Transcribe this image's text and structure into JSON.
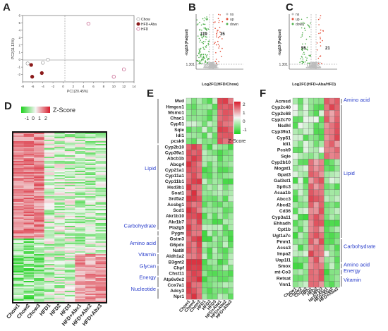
{
  "panel_labels": {
    "A": "A",
    "B": "B",
    "C": "C",
    "D": "D",
    "E": "E",
    "F": "F"
  },
  "colors": {
    "chow": "#ffffff",
    "hfd_aba": "#8b1a1a",
    "hfd": "#ffffff",
    "up": "#e34a33",
    "down": "#4daf4a",
    "ns": "#bdbdbd",
    "category": "#2a3ecb",
    "heat_low": "#1fd21f",
    "heat_mid": "#f5f5f5",
    "heat_high": "#d81b2b"
  },
  "chart_data": [
    {
      "panel": "A",
      "type": "scatter",
      "xlabel": "PC1(20.45%)",
      "ylabel": "PC2(11.13%)",
      "xlim": [
        -8,
        14
      ],
      "ylim": [
        -3,
        6
      ],
      "x_ticks": [
        "-8",
        "-6",
        "-4",
        "-2",
        "0",
        "2",
        "4",
        "6",
        "8",
        "10",
        "12",
        "14"
      ],
      "y_ticks": [
        "-2",
        "-1",
        "0",
        "1",
        "2",
        "3",
        "4",
        "5",
        "6"
      ],
      "legend": [
        "Chow",
        "HFD+Aba",
        "HFD"
      ],
      "legend_position": "top-right",
      "series": [
        {
          "name": "Chow",
          "points": [
            [
              -7,
              -0.5
            ],
            [
              -4,
              -0.4
            ],
            [
              -3,
              0
            ]
          ]
        },
        {
          "name": "HFD+Aba",
          "points": [
            [
              -6.3,
              -0.7
            ],
            [
              -6.1,
              -2.3
            ],
            [
              -4.2,
              -1.8
            ]
          ]
        },
        {
          "name": "HFD",
          "points": [
            [
              5,
              4.9
            ],
            [
              10,
              -2.3
            ],
            [
              12,
              -1.3
            ]
          ]
        }
      ]
    },
    {
      "panel": "B",
      "type": "scatter",
      "xlabel": "Log2FC(HFD/Chow)",
      "ylabel": "-log10 (Padjust)",
      "threshold_label": "1.301",
      "annotations": [
        "119",
        "35"
      ],
      "legend": [
        "ns",
        "up",
        "down"
      ],
      "legend_position": "top-right"
    },
    {
      "panel": "C",
      "type": "scatter",
      "xlabel": "Log2FC(HFD+Aba/HFD)",
      "ylabel": "-log10 (Padjust)",
      "threshold_label": "1.301",
      "annotations": [
        "55",
        "21"
      ],
      "legend": [
        "ns",
        "up",
        "down"
      ],
      "legend_position": "top-left"
    },
    {
      "panel": "D",
      "type": "heatmap",
      "legend_title": "Z-Score",
      "legend_ticks": [
        "-1",
        "0",
        "1",
        "2"
      ],
      "columns": [
        "Chow1",
        "Chow2",
        "Chow3",
        "HFD1",
        "HFD2",
        "HFD3",
        "HFD+Abx1",
        "HFD+Abx2",
        "HFD+Abx3"
      ]
    },
    {
      "panel": "E",
      "type": "heatmap",
      "columns": [
        "Chow1",
        "Chow2",
        "Chow3",
        "HFD1",
        "HFD2",
        "HFD3",
        "HFD+Aba1",
        "HFD+Aba2",
        "HFD+Aba3"
      ],
      "legend_title": "Z-Score",
      "legend_ticks": [
        "2",
        "1",
        "0",
        "-1"
      ],
      "rows": [
        "Mvd",
        "Hmgcs1",
        "Msmo1",
        "Chac1",
        "Cyp51",
        "Sqle",
        "Idi1",
        "pcsk9",
        "Cyp2b10",
        "Cyp39a1",
        "Abcb1b",
        "Abcg4",
        "Cyp21a1",
        "Cyp11a1",
        "Cyp11b1",
        "Hsd3b1",
        "Soat1",
        "Srd5a2",
        "Acsbg1",
        "Scd1",
        "Akr1b10",
        "Akr1b7",
        "Pla2g5",
        "Pygm",
        "Gstm3",
        "G6pdx",
        "Nat8l",
        "Aldh1a2",
        "B3gnt2",
        "Chpf",
        "Chst11",
        "Atp6v0e2",
        "Cox7a1",
        "Adcy3",
        "Npr1"
      ],
      "categories": [
        {
          "label": "Lipid",
          "row": 12
        },
        {
          "label": "Carbohydrate",
          "row": 22
        },
        {
          "label": "Amino acid",
          "row": 25
        },
        {
          "label": "Vitamin",
          "row": 27
        },
        {
          "label": "Glycan",
          "row": 29
        },
        {
          "label": "Energy",
          "row": 31
        },
        {
          "label": "Nucleotide",
          "row": 33
        }
      ]
    },
    {
      "panel": "F",
      "type": "heatmap",
      "columns": [
        "Chow1",
        "Chow2",
        "Chow3",
        "HFD1",
        "HFD2",
        "HFD3",
        "HFD+Aba1",
        "HFD+Aba2",
        "HFD+Aba3"
      ],
      "rows": [
        "Acmsd",
        "Cyp2c40",
        "Cyp2c68",
        "Cyp2c70",
        "Nsdhl",
        "Cyp39a1",
        "Cyp51",
        "Idi1",
        "Pcsk9",
        "Sqle",
        "Cyp2b10",
        "Mogat1",
        "Gpat3",
        "Gal3st1",
        "Sptlc3",
        "Acaa1b",
        "Abcc3",
        "Abcd2",
        "Cd36",
        "Cyp3a11",
        "Ehhadh",
        "Cpt1b",
        "Ugt1a7c",
        "Pmm1",
        "Acss3",
        "Impa2",
        "Uap1l1",
        "Smox",
        "mt-Co3",
        "Retsat",
        "Vnn1"
      ],
      "categories": [
        {
          "label": "Amino acid",
          "row": 0
        },
        {
          "label": "Lipid",
          "row": 12
        },
        {
          "label": "Carbohydrate",
          "row": 24
        },
        {
          "label": "Amino acid",
          "row": 27
        },
        {
          "label": "Energy",
          "row": 28
        },
        {
          "label": "Vitamin",
          "row": 29.5
        }
      ]
    }
  ]
}
